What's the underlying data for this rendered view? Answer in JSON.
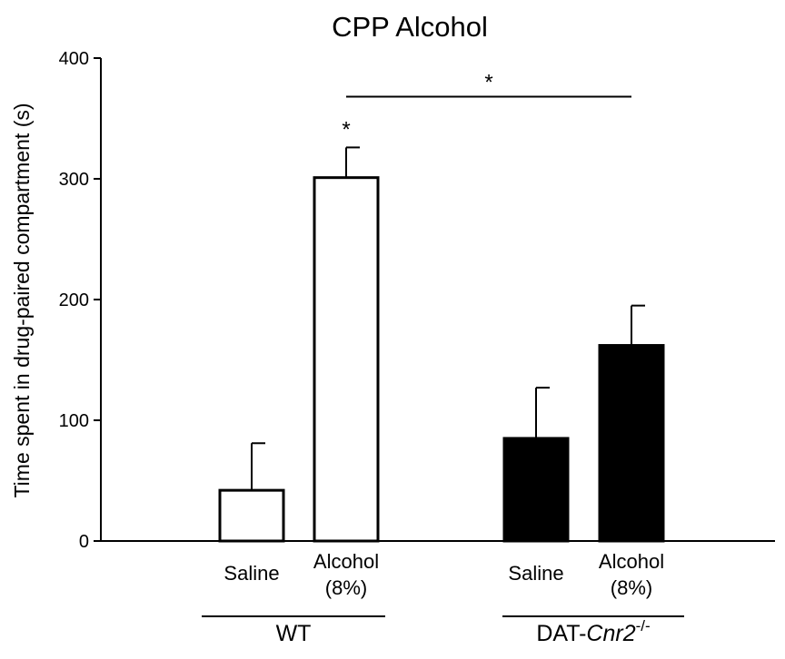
{
  "chart_data": {
    "type": "bar",
    "title": "CPP Alcohol",
    "ylabel": "Time spent in drug-paired compartment (s)",
    "xlabel": "",
    "ylim": [
      0,
      400
    ],
    "yticks": [
      0,
      100,
      200,
      300,
      400
    ],
    "grid": false,
    "bars": [
      {
        "label": "Saline",
        "group": "WT",
        "value": 42,
        "error": 39,
        "fill": "#ffffff"
      },
      {
        "label": "Alcohol\n(8%)",
        "group": "WT",
        "value": 301,
        "error": 25,
        "fill": "#ffffff",
        "annotation": "*"
      },
      {
        "label": "Saline",
        "group": "DAT-Cnr2-/-",
        "value": 85,
        "error": 42,
        "fill": "#000000"
      },
      {
        "label": "Alcohol\n(8%)",
        "group": "DAT-Cnr2-/-",
        "value": 162,
        "error": 33,
        "fill": "#000000"
      }
    ],
    "groups": [
      {
        "name": "WT",
        "prefix": "WT",
        "italic": "",
        "superscript": ""
      },
      {
        "name": "DAT-Cnr2-/-",
        "prefix": "DAT-",
        "italic": "Cnr2",
        "superscript": "-/-"
      }
    ],
    "significance": [
      {
        "from_bar": 1,
        "to_bar": 3,
        "label": "*",
        "y": 368
      }
    ]
  }
}
